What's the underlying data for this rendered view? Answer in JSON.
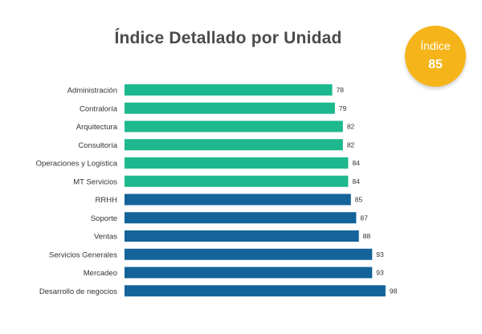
{
  "chart_data": {
    "type": "bar",
    "orientation": "horizontal",
    "title": "Índice Detallado por Unidad",
    "categories": [
      "Administración",
      "Contraloría",
      "Arquitectura",
      "Consultoría",
      "Operaciones y Logistica",
      "MT Servicios",
      "RRHH",
      "Soporte",
      "Ventas",
      "Servicios Generales",
      "Mercadeo",
      "Desarrollo de negocios"
    ],
    "values": [
      78,
      79,
      82,
      82,
      84,
      84,
      85,
      87,
      88,
      93,
      93,
      98
    ],
    "value_labels": [
      "78",
      "79",
      "82",
      "82",
      "84",
      "84",
      "85",
      "87",
      "88",
      "93",
      "93",
      "98"
    ],
    "bar_colors": [
      "#1db88e",
      "#1db88e",
      "#1db88e",
      "#1db88e",
      "#1db88e",
      "#1db88e",
      "#14639a",
      "#14639a",
      "#14639a",
      "#14639a",
      "#14639a",
      "#14639a"
    ],
    "axis_visible": false,
    "grid": false,
    "legend": false
  },
  "badge": {
    "label": "Índice",
    "value": "85",
    "color": "#f5b51a"
  }
}
